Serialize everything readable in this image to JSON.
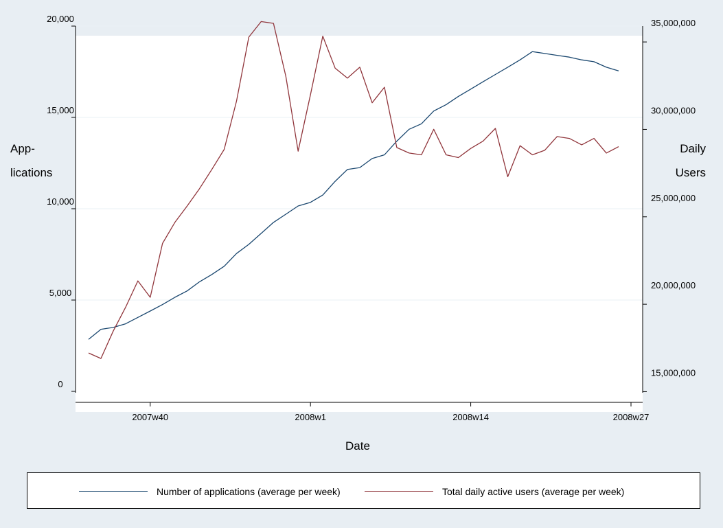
{
  "chart_data": {
    "type": "line",
    "title": "",
    "xlabel": "Date",
    "ylabel_left": [
      "App-",
      "lications"
    ],
    "ylabel_right": [
      "Daily",
      "Users"
    ],
    "x_ticks": [
      "2007w40",
      "2008w1",
      "2008w14",
      "2008w27"
    ],
    "x_tick_values": [
      5,
      18,
      31,
      44
    ],
    "xlim": [
      0,
      45
    ],
    "y_left_ticks": [
      "0",
      "5,000",
      "10,000",
      "15,000",
      "20,000"
    ],
    "y_left_tick_values": [
      0,
      5000,
      10000,
      15000,
      20000
    ],
    "y_left_lim": [
      0,
      20000
    ],
    "y_right_ticks": [
      "15,000,000",
      "20,000,000",
      "25,000,000",
      "30,000,000",
      "35,000,000"
    ],
    "y_right_tick_values": [
      15000000,
      20000000,
      25000000,
      30000000,
      35000000
    ],
    "y_right_lim": [
      13800000,
      36300000
    ],
    "grid": "horizontal",
    "legend_placement": "bottom",
    "series": [
      {
        "name": "Number of applications (average per week)",
        "axis": "left",
        "color": "#1a476f",
        "x": [
          0,
          1,
          2,
          3,
          4,
          5,
          6,
          7,
          8,
          9,
          10,
          11,
          12,
          13,
          14,
          15,
          16,
          17,
          18,
          19,
          20,
          21,
          22,
          23,
          24,
          25,
          26,
          27,
          28,
          29,
          30,
          31,
          32,
          33,
          34,
          35,
          36,
          37,
          38,
          39,
          40,
          41,
          42,
          43
        ],
        "values": [
          2850,
          3400,
          3500,
          3700,
          4050,
          4400,
          4750,
          5150,
          5500,
          6000,
          6400,
          6850,
          7550,
          8050,
          8650,
          9250,
          9700,
          10150,
          10350,
          10750,
          11500,
          12150,
          12250,
          12750,
          12950,
          13700,
          14350,
          14650,
          15350,
          15700,
          16150,
          16550,
          16950,
          17350,
          17750,
          18150,
          18600,
          18500,
          18400,
          18300,
          18150,
          18050,
          17750,
          17550
        ]
      },
      {
        "name": "Total daily active users (average per week)",
        "axis": "left",
        "color": "#90353b",
        "x": [
          0,
          1,
          2,
          3,
          4,
          5,
          6,
          7,
          8,
          9,
          10,
          11,
          12,
          13,
          14,
          15,
          16,
          17,
          18,
          19,
          20,
          21,
          22,
          23,
          24,
          25,
          26,
          27,
          28,
          29,
          30,
          31,
          32,
          33,
          34,
          35,
          36,
          37,
          38,
          39,
          40,
          41,
          42,
          43
        ],
        "values": [
          2100,
          1800,
          3300,
          4600,
          6050,
          5150,
          8100,
          9250,
          10150,
          11100,
          12150,
          13250,
          15900,
          19400,
          20250,
          20150,
          17250,
          13150,
          16250,
          19450,
          17700,
          17150,
          17750,
          15800,
          16650,
          13350,
          13050,
          12950,
          14350,
          12950,
          12800,
          13300,
          13700,
          14400,
          11750,
          13450,
          12950,
          13200,
          13950,
          13850,
          13500,
          13850,
          13050,
          13400
        ]
      }
    ]
  }
}
